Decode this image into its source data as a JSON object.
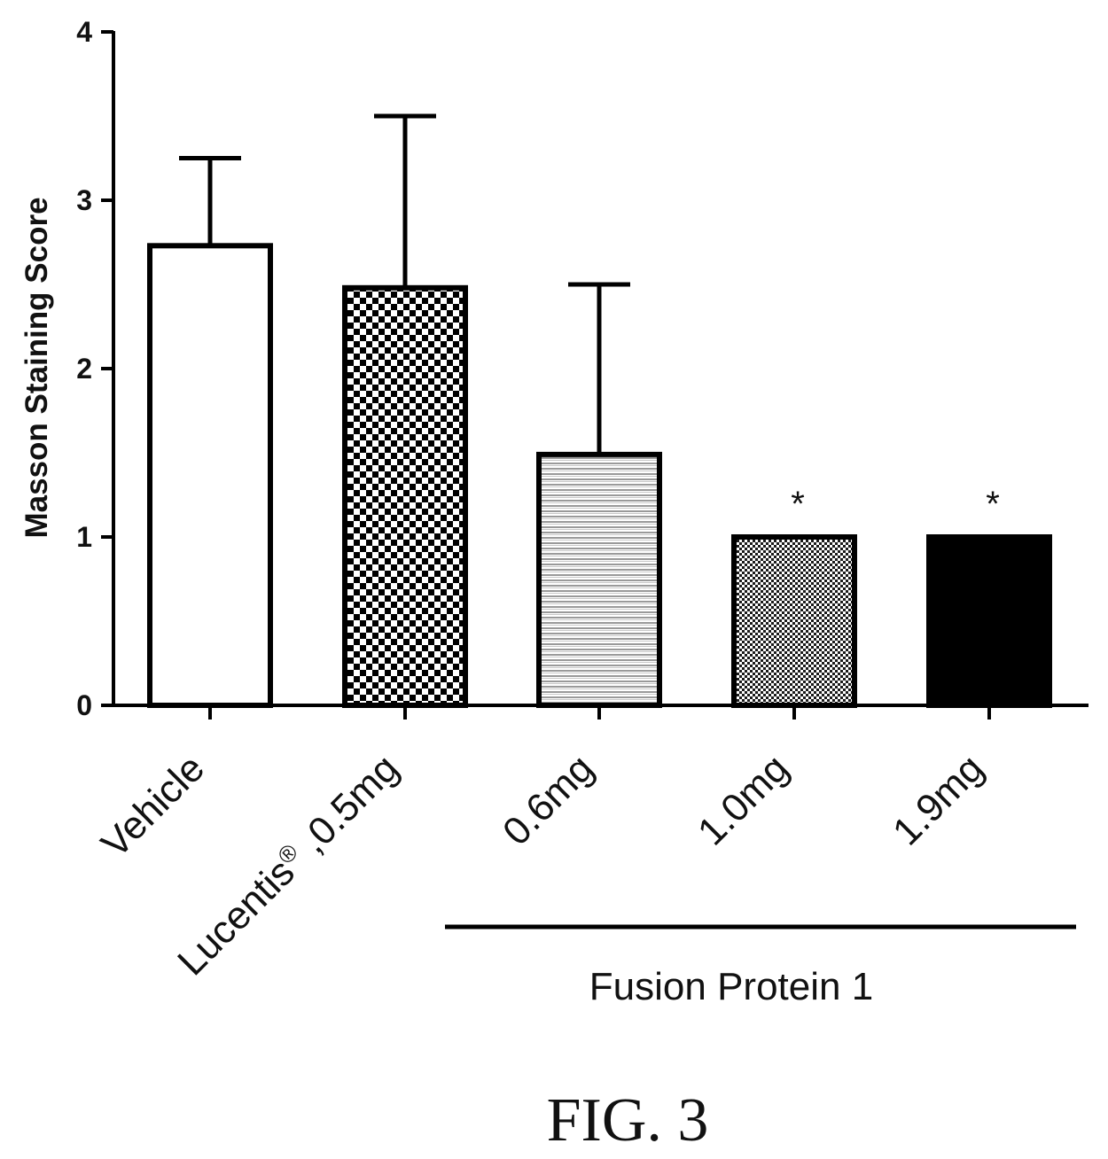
{
  "chart_data": {
    "type": "bar",
    "title": "",
    "ylabel": "Masson Staining Score",
    "xlabel": "",
    "ylim": [
      0,
      4
    ],
    "yticks": [
      "0",
      "1",
      "2",
      "3",
      "4"
    ],
    "grid": false,
    "categories": [
      "Vehicle",
      "Lucentis",
      "0.6mg",
      "1.0mg",
      "1.9mg"
    ],
    "category_suffix": {
      "Lucentis": {
        "superscript": "®",
        "rest": " ,0.5mg"
      }
    },
    "values": [
      2.73,
      2.48,
      1.49,
      1.0,
      1.0
    ],
    "error_upper": [
      3.25,
      3.5,
      2.5,
      null,
      null
    ],
    "fill_patterns": [
      "white",
      "checkerboard",
      "horizontal-lines",
      "fine-crosshatch",
      "solid-black"
    ],
    "significance": [
      "",
      "",
      "",
      "*",
      "*"
    ],
    "group_bracket": {
      "label": "Fusion Protein 1",
      "categories": [
        "0.6mg",
        "1.0mg",
        "1.9mg"
      ]
    },
    "caption": "FIG. 3"
  }
}
